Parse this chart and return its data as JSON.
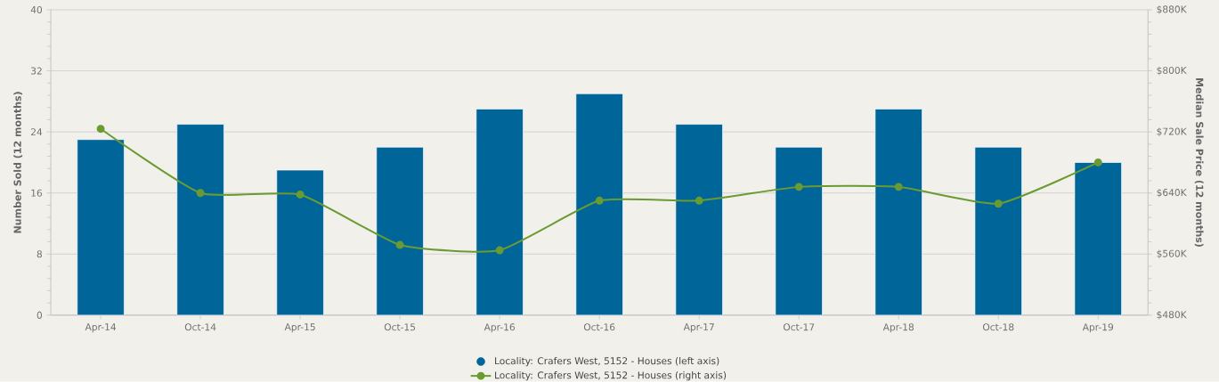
{
  "chart_data": {
    "type": "bar",
    "ylabel": "Number Sold (12 months)",
    "y2label": "Median Sale Price (12 months)",
    "categories": [
      "Apr-14",
      "Oct-14",
      "Apr-15",
      "Oct-15",
      "Apr-16",
      "Oct-16",
      "Apr-17",
      "Oct-17",
      "Apr-18",
      "Oct-18",
      "Apr-19"
    ],
    "series": [
      {
        "name": "Locality: Crafers West, 5152 - Houses (left axis)",
        "color": "#006699",
        "values": [
          23,
          25,
          19,
          22,
          27,
          29,
          25,
          22,
          27,
          22,
          20
        ]
      },
      {
        "name": "Locality: Crafers West, 5152 - Houses (right axis)",
        "type": "line",
        "axis": "y2",
        "color": "#6a9b32",
        "marker": "circle",
        "line_style": "solid",
        "values": [
          724000,
          640000,
          638000,
          572000,
          565000,
          630000,
          630000,
          648000,
          648000,
          626000,
          680000
        ]
      }
    ],
    "ylim": [
      0,
      40
    ],
    "yticks": [
      0,
      8,
      16,
      24,
      32,
      40
    ],
    "y2lim": [
      480000,
      880000
    ],
    "y2ticks": [
      {
        "value": 480000,
        "label": "$480K"
      },
      {
        "value": 560000,
        "label": "$560K"
      },
      {
        "value": 640000,
        "label": "$640K"
      },
      {
        "value": 720000,
        "label": "$720K"
      },
      {
        "value": 800000,
        "label": "$800K"
      },
      {
        "value": 880000,
        "label": "$880K"
      }
    ],
    "grid": "y",
    "legend": "bottom"
  }
}
